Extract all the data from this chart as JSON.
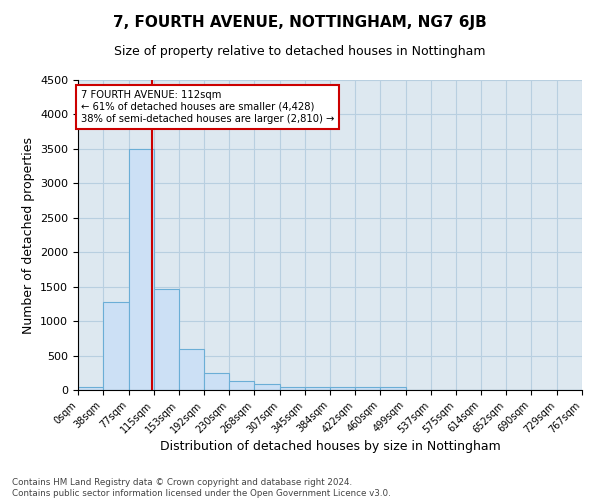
{
  "title": "7, FOURTH AVENUE, NOTTINGHAM, NG7 6JB",
  "subtitle": "Size of property relative to detached houses in Nottingham",
  "xlabel": "Distribution of detached houses by size in Nottingham",
  "ylabel": "Number of detached properties",
  "bar_edges": [
    0,
    38,
    77,
    115,
    153,
    192,
    230,
    268,
    307,
    345,
    384,
    422,
    460,
    499,
    537,
    575,
    614,
    652,
    690,
    729,
    767
  ],
  "bar_heights": [
    50,
    1280,
    3500,
    1460,
    590,
    250,
    130,
    80,
    50,
    50,
    50,
    50,
    50,
    0,
    0,
    0,
    0,
    0,
    0,
    0
  ],
  "bar_color": "#cce0f5",
  "bar_edge_color": "#6baed6",
  "red_line_x": 112,
  "annotation_line1": "7 FOURTH AVENUE: 112sqm",
  "annotation_line2": "← 61% of detached houses are smaller (4,428)",
  "annotation_line3": "38% of semi-detached houses are larger (2,810) →",
  "annotation_box_color": "#ffffff",
  "annotation_box_edge": "#cc0000",
  "red_line_color": "#cc0000",
  "ylim": [
    0,
    4500
  ],
  "xlim": [
    0,
    767
  ],
  "grid_color": "#b8cfe0",
  "background_color": "#dde8f0",
  "footer_line1": "Contains HM Land Registry data © Crown copyright and database right 2024.",
  "footer_line2": "Contains public sector information licensed under the Open Government Licence v3.0.",
  "tick_labels": [
    "0sqm",
    "38sqm",
    "77sqm",
    "115sqm",
    "153sqm",
    "192sqm",
    "230sqm",
    "268sqm",
    "307sqm",
    "345sqm",
    "384sqm",
    "422sqm",
    "460sqm",
    "499sqm",
    "537sqm",
    "575sqm",
    "614sqm",
    "652sqm",
    "690sqm",
    "729sqm",
    "767sqm"
  ],
  "title_fontsize": 11,
  "subtitle_fontsize": 9,
  "ylabel_fontsize": 9,
  "xlabel_fontsize": 9
}
